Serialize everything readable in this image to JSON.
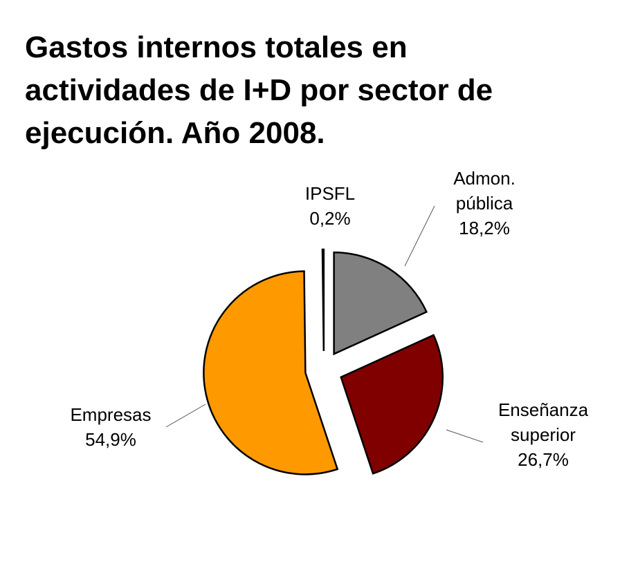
{
  "chart_data": {
    "type": "pie",
    "title": "Gastos internos totales en actividades de I+D por sector de ejecución. Año 2008.",
    "categories": [
      "Admon. pública",
      "Enseñanza superior",
      "Empresas",
      "IPSFL"
    ],
    "values": [
      18.2,
      26.7,
      54.9,
      0.2
    ],
    "value_labels": [
      "18,2%",
      "26,7%",
      "54,9%",
      "0,2%"
    ],
    "colors": [
      "#808080",
      "#800000",
      "#ff9900",
      "#ffffff"
    ]
  }
}
